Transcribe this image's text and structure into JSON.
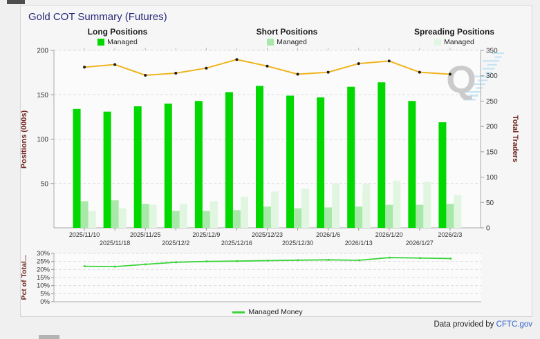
{
  "title": "Gold COT Summary (Futures)",
  "watermark": "Q",
  "legend_groups": [
    {
      "title": "Long Positions",
      "item": "Managed",
      "color": "#00d800"
    },
    {
      "title": "Short Positions",
      "item": "Managed",
      "color": "#a8e8a8"
    },
    {
      "title": "Spreading Positions",
      "item": "Managed",
      "color": "#e0f6e0"
    }
  ],
  "footer": {
    "prefix": "Data provided by ",
    "link": "CFTC.gov"
  },
  "chart_data": [
    {
      "type": "bar",
      "title": "Gold COT Summary (Futures)",
      "categories": [
        "2025/11/10",
        "2025/11/18",
        "2025/11/25",
        "2025/12/2",
        "2025/12/9",
        "2025/12/16",
        "2025/12/23",
        "2025/12/30",
        "2026/1/6",
        "2026/1/13",
        "2026/1/20",
        "2026/1/27",
        "2026/2/3"
      ],
      "series": [
        {
          "name": "Long Managed",
          "type": "bar",
          "axis": "left",
          "color": "#00d800",
          "values": [
            134,
            131,
            137,
            140,
            143,
            153,
            160,
            149,
            147,
            159,
            164,
            143,
            119
          ]
        },
        {
          "name": "Short Managed",
          "type": "bar",
          "axis": "left",
          "color": "#a8e8a8",
          "values": [
            30,
            31,
            27,
            19,
            19,
            20,
            24,
            22,
            23,
            24,
            26,
            26,
            27
          ]
        },
        {
          "name": "Spreading Managed",
          "type": "bar",
          "axis": "left",
          "color": "#e0f6e0",
          "values": [
            19,
            22,
            26,
            27,
            30,
            35,
            41,
            44,
            50,
            49,
            53,
            52,
            37
          ]
        },
        {
          "name": "Total Traders",
          "type": "line",
          "axis": "right",
          "color": "#efb41e",
          "marker_color": "#1a1a1a",
          "values": [
            317,
            322,
            301,
            305,
            315,
            332,
            319,
            303,
            307,
            324,
            329,
            307,
            303
          ]
        }
      ],
      "ylabel_left": "Positions (000s)",
      "ylabel_right": "Total Traders",
      "ylim_left": [
        0,
        200
      ],
      "ylim_right": [
        0,
        350
      ],
      "left_ticks": [
        50,
        100,
        150,
        200
      ],
      "right_ticks": [
        0,
        50,
        100,
        150,
        200,
        250,
        300,
        350
      ],
      "grid": "dashed horizontal"
    },
    {
      "type": "line",
      "ylabel": "Pct of Total...",
      "categories": [
        "2025/11/10",
        "2025/11/18",
        "2025/11/25",
        "2025/12/2",
        "2025/12/9",
        "2025/12/16",
        "2025/12/23",
        "2025/12/30",
        "2026/1/6",
        "2026/1/13",
        "2026/1/20",
        "2026/1/27",
        "2026/2/3"
      ],
      "series": [
        {
          "name": "Managed Money",
          "color": "#3bd43b",
          "values": [
            22,
            21.8,
            23.2,
            24.5,
            25,
            25.2,
            25.5,
            25.8,
            26,
            25.7,
            27.4,
            27.1,
            26.8
          ]
        }
      ],
      "ylim": [
        0,
        30
      ],
      "yticks": [
        "0%",
        "5%",
        "10%",
        "15%",
        "20%",
        "25%",
        "30%"
      ],
      "legend_position": "bottom center",
      "grid": "dashed horizontal"
    }
  ]
}
